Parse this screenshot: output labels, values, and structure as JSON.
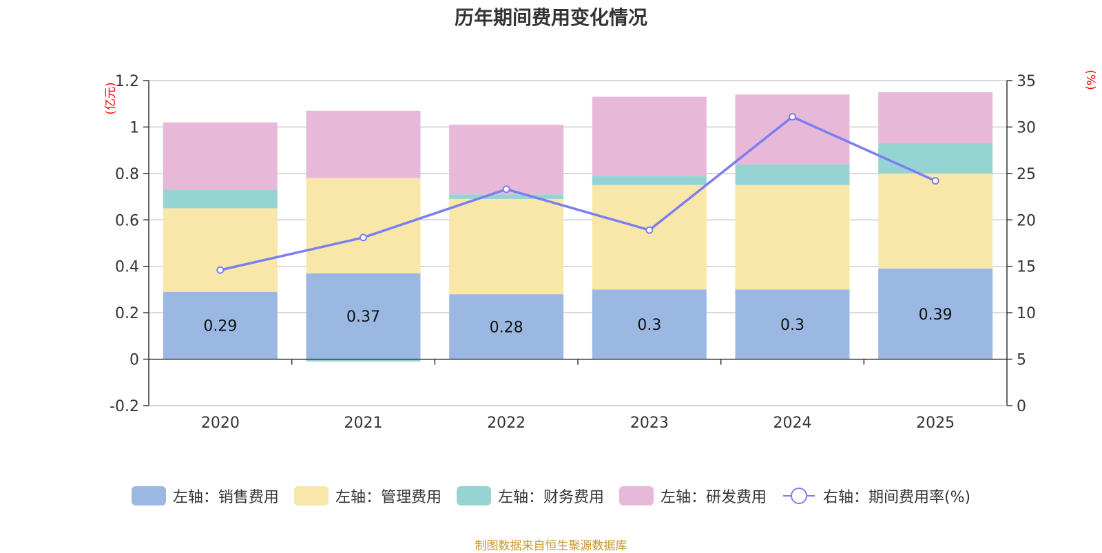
{
  "chart_data": {
    "type": "bar",
    "stacked": true,
    "title": "历年期间费用变化情况",
    "categories": [
      "2020",
      "2021",
      "2022",
      "2023",
      "2024",
      "2025"
    ],
    "left_axis": {
      "unit_label": "(亿元)",
      "ylim": [
        -0.2,
        1.2
      ],
      "ticks": [
        1.2,
        1,
        0.8,
        0.6,
        0.4,
        0.2,
        0,
        -0.2
      ],
      "tick_labels": [
        "1.2",
        "1",
        "0.8",
        "0.6",
        "0.4",
        "0.2",
        "0",
        "-0.2"
      ]
    },
    "right_axis": {
      "unit_label": "(%)",
      "ylim": [
        0,
        35
      ],
      "ticks": [
        35,
        30,
        25,
        20,
        15,
        10,
        5,
        0
      ],
      "tick_labels": [
        "35",
        "30",
        "25",
        "20",
        "15",
        "10",
        "5",
        "0"
      ]
    },
    "series": [
      {
        "name": "左轴：销售费用",
        "axis": "left",
        "kind": "bar",
        "color": "#9bb8e2",
        "values": [
          0.29,
          0.37,
          0.28,
          0.3,
          0.3,
          0.39
        ],
        "labels": [
          "0.29",
          "0.37",
          "0.28",
          "0.3",
          "0.3",
          "0.39"
        ]
      },
      {
        "name": "左轴：管理费用",
        "axis": "left",
        "kind": "bar",
        "color": "#f8e7a8",
        "values": [
          0.36,
          0.41,
          0.41,
          0.45,
          0.45,
          0.41
        ]
      },
      {
        "name": "左轴：财务费用",
        "axis": "left",
        "kind": "bar",
        "color": "#96d4d4",
        "values": [
          0.08,
          -0.01,
          0.02,
          0.04,
          0.09,
          0.13
        ]
      },
      {
        "name": "左轴：研发费用",
        "axis": "left",
        "kind": "bar",
        "color": "#e8b8d8",
        "values": [
          0.29,
          0.29,
          0.3,
          0.34,
          0.3,
          0.22
        ]
      },
      {
        "name": "右轴：期间费用率(%)",
        "axis": "right",
        "kind": "line",
        "color": "#7b7ef0",
        "values": [
          14.6,
          18.1,
          23.3,
          18.9,
          31.1,
          24.2
        ]
      }
    ]
  },
  "source_note": "制图数据来自恒生聚源数据库",
  "colors": {
    "axis_unit": "#ff0000",
    "source_note": "#c8962a",
    "grid": "#cccccc",
    "axis": "#333333"
  }
}
